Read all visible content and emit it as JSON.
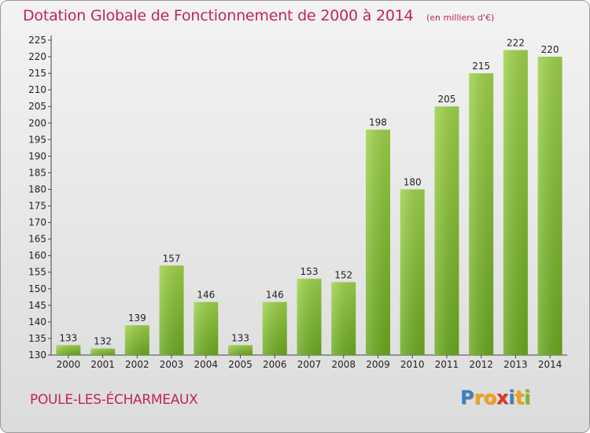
{
  "chart_data": {
    "type": "bar",
    "title": "Dotation Globale de Fonctionnement de 2000 à 2014",
    "subtitle": "(en milliers d'€)",
    "categories": [
      "2000",
      "2001",
      "2002",
      "2003",
      "2004",
      "2005",
      "2006",
      "2007",
      "2008",
      "2009",
      "2010",
      "2011",
      "2012",
      "2013",
      "2014"
    ],
    "values": [
      133,
      132,
      139,
      157,
      146,
      133,
      146,
      153,
      152,
      198,
      180,
      205,
      215,
      222,
      220
    ],
    "ylim": [
      130,
      225
    ],
    "yticks": [
      130,
      135,
      140,
      145,
      150,
      155,
      160,
      165,
      170,
      175,
      180,
      185,
      190,
      195,
      200,
      205,
      210,
      215,
      220,
      225
    ],
    "grid": false,
    "bar_color": "#7cb832"
  },
  "footer": {
    "commune": "POULE-LES-ÉCHARMEAUX",
    "brand_letters": [
      {
        "ch": "P",
        "color": "#3a7fd0"
      },
      {
        "ch": "r",
        "color": "#f0a020"
      },
      {
        "ch": "o",
        "color": "#f0a020"
      },
      {
        "ch": "x",
        "color": "#e03030"
      },
      {
        "ch": "i",
        "color": "#3a7fd0"
      },
      {
        "ch": "t",
        "color": "#f0a020"
      },
      {
        "ch": "i",
        "color": "#7cb832"
      }
    ]
  }
}
